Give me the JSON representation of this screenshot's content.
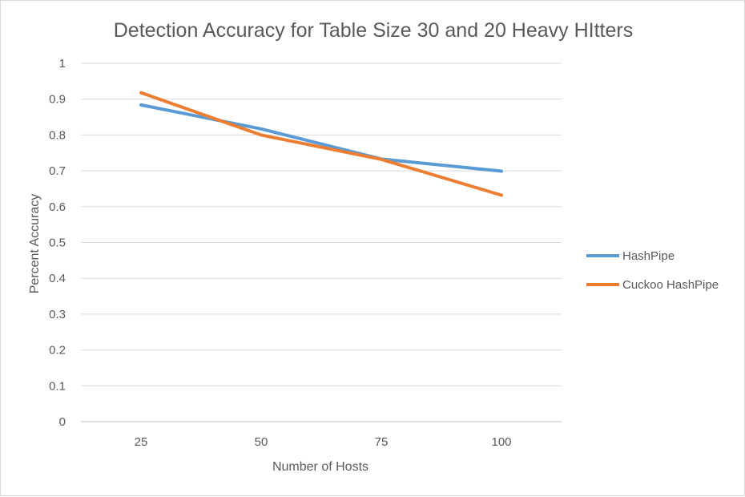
{
  "chart_data": {
    "type": "line",
    "title": "Detection Accuracy for Table Size 30 and 20 Heavy HItters",
    "xlabel": "Number of Hosts",
    "ylabel": "Percent Accuracy",
    "categories": [
      "25",
      "50",
      "75",
      "100"
    ],
    "ylim": [
      0,
      1
    ],
    "yticks": [
      "0",
      "0.1",
      "0.2",
      "0.3",
      "0.4",
      "0.5",
      "0.6",
      "0.7",
      "0.8",
      "0.9",
      "1"
    ],
    "grid": true,
    "legend_position": "right",
    "series": [
      {
        "name": "HashPipe",
        "values": [
          0.884,
          0.817,
          0.733,
          0.699
        ],
        "color": "#5b9bd5"
      },
      {
        "name": "Cuckoo HashPipe",
        "values": [
          0.918,
          0.8,
          0.732,
          0.632
        ],
        "color": "#ed7d31"
      }
    ]
  }
}
